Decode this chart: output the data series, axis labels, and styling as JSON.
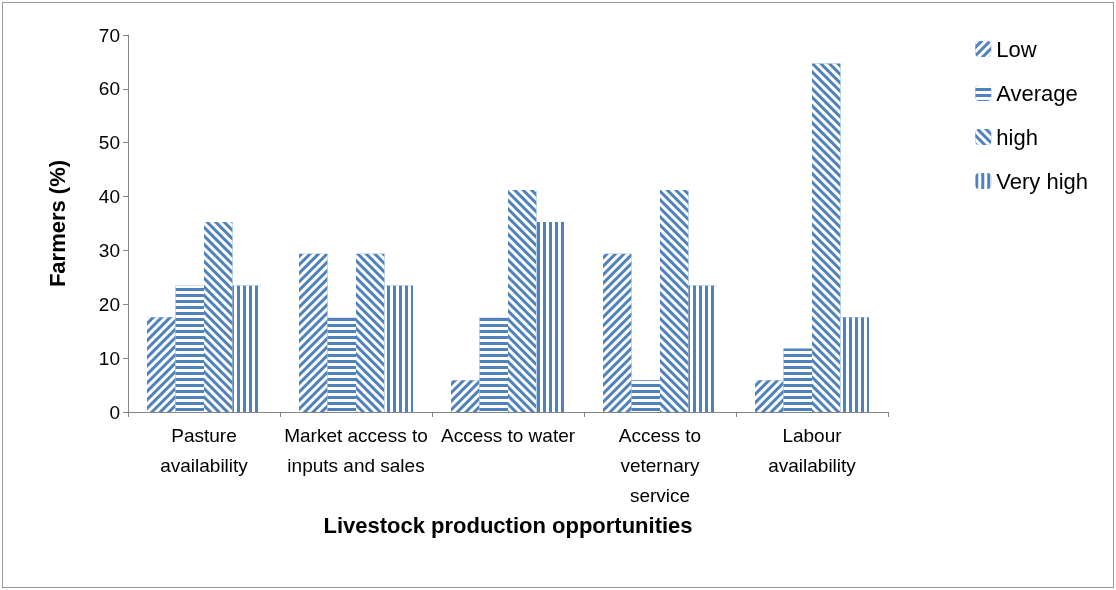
{
  "chart_data": {
    "type": "bar",
    "xlabel": "Livestock production opportunities",
    "ylabel": "Farmers (%)",
    "categories": [
      "Pasture availability",
      "Market access to inputs and sales",
      "Access to water",
      "Access to veternary service",
      "Labour availability"
    ],
    "series": [
      {
        "name": "Low",
        "color": "#4f81bd",
        "values": [
          17.6,
          29.4,
          5.9,
          29.4,
          5.9
        ]
      },
      {
        "name": "Average",
        "color": "#4f81bd",
        "values": [
          23.5,
          17.6,
          17.6,
          5.9,
          11.8
        ]
      },
      {
        "name": "high",
        "color": "#4f81bd",
        "values": [
          35.3,
          29.4,
          41.2,
          41.2,
          64.7
        ]
      },
      {
        "name": "Very high",
        "color": "#4f81bd",
        "values": [
          23.5,
          23.5,
          35.3,
          23.5,
          17.6
        ]
      }
    ],
    "ylim": [
      0,
      70
    ],
    "yticks": [
      0,
      10,
      20,
      30,
      40,
      50,
      60,
      70
    ],
    "grid": false,
    "legend": "right"
  }
}
